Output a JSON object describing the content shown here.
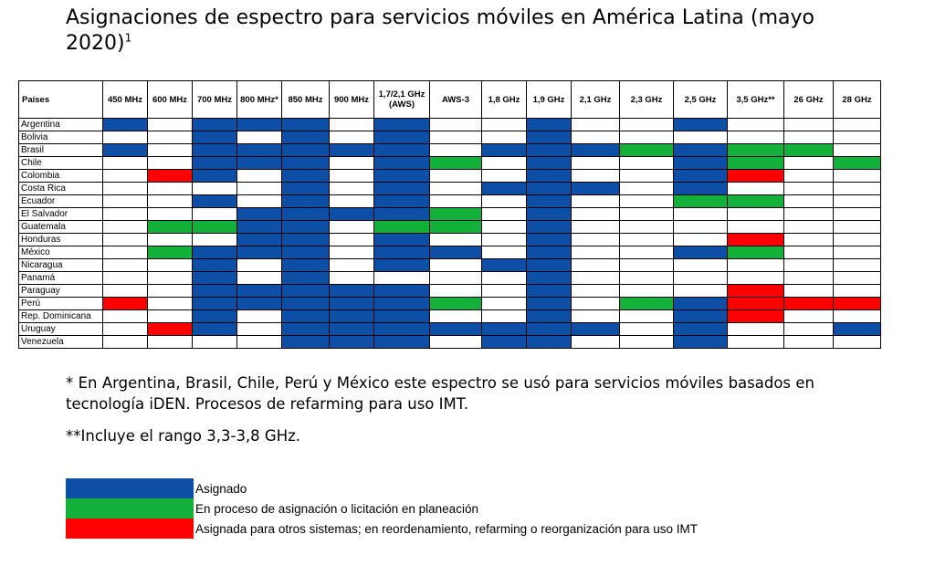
{
  "title": "Asignaciones de espectro para servicios móviles en América Latina (mayo 2020)",
  "title_footnote": "1",
  "colors": {
    "A": "#0d4ea6",
    "P": "#13b13a",
    "O": "#ff0000",
    "N": "#ffffff"
  },
  "chart_data": {
    "type": "table",
    "row_header": "Países",
    "columns": [
      "450 MHz",
      "600 MHz",
      "700 MHz",
      "800 MHz*",
      "850 MHz",
      "900 MHz",
      "1,7/2,1 GHz (AWS)",
      "AWS-3",
      "1,8 GHz",
      "1,9 GHz",
      "2,1 GHz",
      "2,3 GHz",
      "2,5 GHz",
      "3,5 GHz**",
      "26 GHz",
      "28 GHz"
    ],
    "value_legend": {
      "A": "Asignado",
      "P": "En proceso de asignación o licitación en planeación",
      "O": "Asignada para otros sistemas; en reordenamiento, refarming o reorganización para uso IMT",
      "N": ""
    },
    "rows": [
      {
        "country": "Argentina",
        "values": [
          "A",
          "N",
          "A",
          "A",
          "A",
          "N",
          "A",
          "N",
          "N",
          "A",
          "N",
          "N",
          "A",
          "N",
          "N",
          "N"
        ]
      },
      {
        "country": "Bolivia",
        "values": [
          "N",
          "N",
          "A",
          "N",
          "A",
          "N",
          "A",
          "N",
          "N",
          "A",
          "N",
          "N",
          "N",
          "N",
          "N",
          "N"
        ]
      },
      {
        "country": "Brasil",
        "values": [
          "A",
          "N",
          "A",
          "A",
          "A",
          "A",
          "A",
          "N",
          "A",
          "A",
          "A",
          "P",
          "A",
          "P",
          "P",
          "N"
        ]
      },
      {
        "country": "Chile",
        "values": [
          "N",
          "N",
          "A",
          "A",
          "A",
          "N",
          "A",
          "P",
          "N",
          "A",
          "N",
          "N",
          "A",
          "P",
          "N",
          "P"
        ]
      },
      {
        "country": "Colombia",
        "values": [
          "N",
          "O",
          "A",
          "N",
          "A",
          "N",
          "A",
          "N",
          "N",
          "A",
          "N",
          "N",
          "A",
          "O",
          "N",
          "N"
        ]
      },
      {
        "country": "Costa Rica",
        "values": [
          "N",
          "N",
          "N",
          "N",
          "A",
          "N",
          "A",
          "N",
          "A",
          "A",
          "A",
          "N",
          "A",
          "N",
          "N",
          "N"
        ]
      },
      {
        "country": "Ecuador",
        "values": [
          "N",
          "N",
          "A",
          "N",
          "A",
          "N",
          "A",
          "N",
          "N",
          "A",
          "N",
          "N",
          "P",
          "P",
          "N",
          "N"
        ]
      },
      {
        "country": "El Salvador",
        "values": [
          "N",
          "N",
          "N",
          "A",
          "A",
          "A",
          "A",
          "P",
          "N",
          "A",
          "N",
          "N",
          "N",
          "N",
          "N",
          "N"
        ]
      },
      {
        "country": "Guatemala",
        "values": [
          "N",
          "P",
          "P",
          "A",
          "A",
          "N",
          "P",
          "P",
          "N",
          "A",
          "N",
          "N",
          "N",
          "N",
          "N",
          "N"
        ]
      },
      {
        "country": "Honduras",
        "values": [
          "N",
          "N",
          "N",
          "A",
          "A",
          "N",
          "A",
          "N",
          "N",
          "A",
          "N",
          "N",
          "N",
          "O",
          "N",
          "N"
        ]
      },
      {
        "country": "México",
        "values": [
          "N",
          "P",
          "A",
          "A",
          "A",
          "N",
          "A",
          "A",
          "N",
          "A",
          "N",
          "N",
          "A",
          "P",
          "N",
          "N"
        ]
      },
      {
        "country": "Nicaragua",
        "values": [
          "N",
          "N",
          "A",
          "N",
          "A",
          "N",
          "A",
          "N",
          "A",
          "A",
          "N",
          "N",
          "N",
          "N",
          "N",
          "N"
        ]
      },
      {
        "country": "Panamá",
        "values": [
          "N",
          "N",
          "A",
          "N",
          "A",
          "N",
          "N",
          "N",
          "N",
          "A",
          "N",
          "N",
          "N",
          "N",
          "N",
          "N"
        ]
      },
      {
        "country": "Paraguay",
        "values": [
          "N",
          "N",
          "A",
          "A",
          "A",
          "A",
          "A",
          "N",
          "N",
          "A",
          "N",
          "N",
          "N",
          "O",
          "N",
          "N"
        ]
      },
      {
        "country": "Perú",
        "values": [
          "O",
          "N",
          "A",
          "A",
          "A",
          "A",
          "A",
          "P",
          "N",
          "A",
          "N",
          "P",
          "A",
          "O",
          "O",
          "O"
        ]
      },
      {
        "country": "Rep. Dominicana",
        "values": [
          "N",
          "N",
          "A",
          "N",
          "A",
          "A",
          "A",
          "N",
          "N",
          "A",
          "N",
          "N",
          "A",
          "O",
          "N",
          "N"
        ]
      },
      {
        "country": "Uruguay",
        "values": [
          "N",
          "O",
          "A",
          "N",
          "A",
          "A",
          "A",
          "A",
          "A",
          "A",
          "A",
          "N",
          "A",
          "N",
          "N",
          "A"
        ]
      },
      {
        "country": "Venezuela",
        "values": [
          "N",
          "N",
          "N",
          "N",
          "A",
          "A",
          "A",
          "N",
          "A",
          "A",
          "N",
          "N",
          "A",
          "N",
          "N",
          "N"
        ]
      }
    ]
  },
  "notes": {
    "note1": "* En Argentina, Brasil, Chile, Perú y México este espectro se usó para servicios móviles basados en tecnología iDEN. Procesos de refarming para uso IMT.",
    "note2": "**Incluye el rango 3,3-3,8 GHz."
  },
  "legend": [
    {
      "key": "A",
      "label": "Asignado"
    },
    {
      "key": "P",
      "label": "En proceso de asignación o licitación en planeación"
    },
    {
      "key": "O",
      "label": "Asignada para otros sistemas; en reordenamiento, refarming o reorganización para uso IMT"
    }
  ]
}
